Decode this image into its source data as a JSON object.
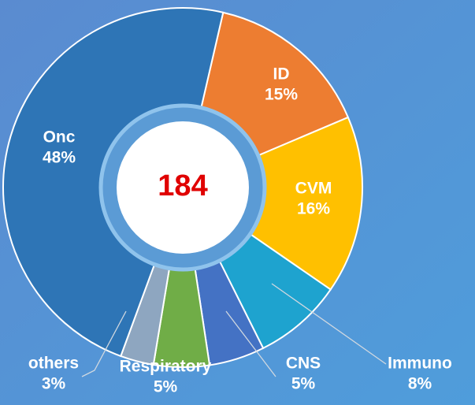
{
  "chart_data": {
    "type": "pie",
    "center_label": "184",
    "categories": [
      "ID",
      "CVM",
      "Immuno",
      "CNS",
      "Respiratory",
      "others",
      "Onc"
    ],
    "values": [
      15,
      16,
      8,
      5,
      5,
      3,
      48
    ],
    "value_labels": [
      "15%",
      "16%",
      "8%",
      "5%",
      "5%",
      "3%",
      "48%"
    ],
    "colors": [
      "#ed7d31",
      "#ffc000",
      "#1ea3cf",
      "#4472c4",
      "#70ad47",
      "#8ea6c0",
      "#2e75b6"
    ]
  }
}
